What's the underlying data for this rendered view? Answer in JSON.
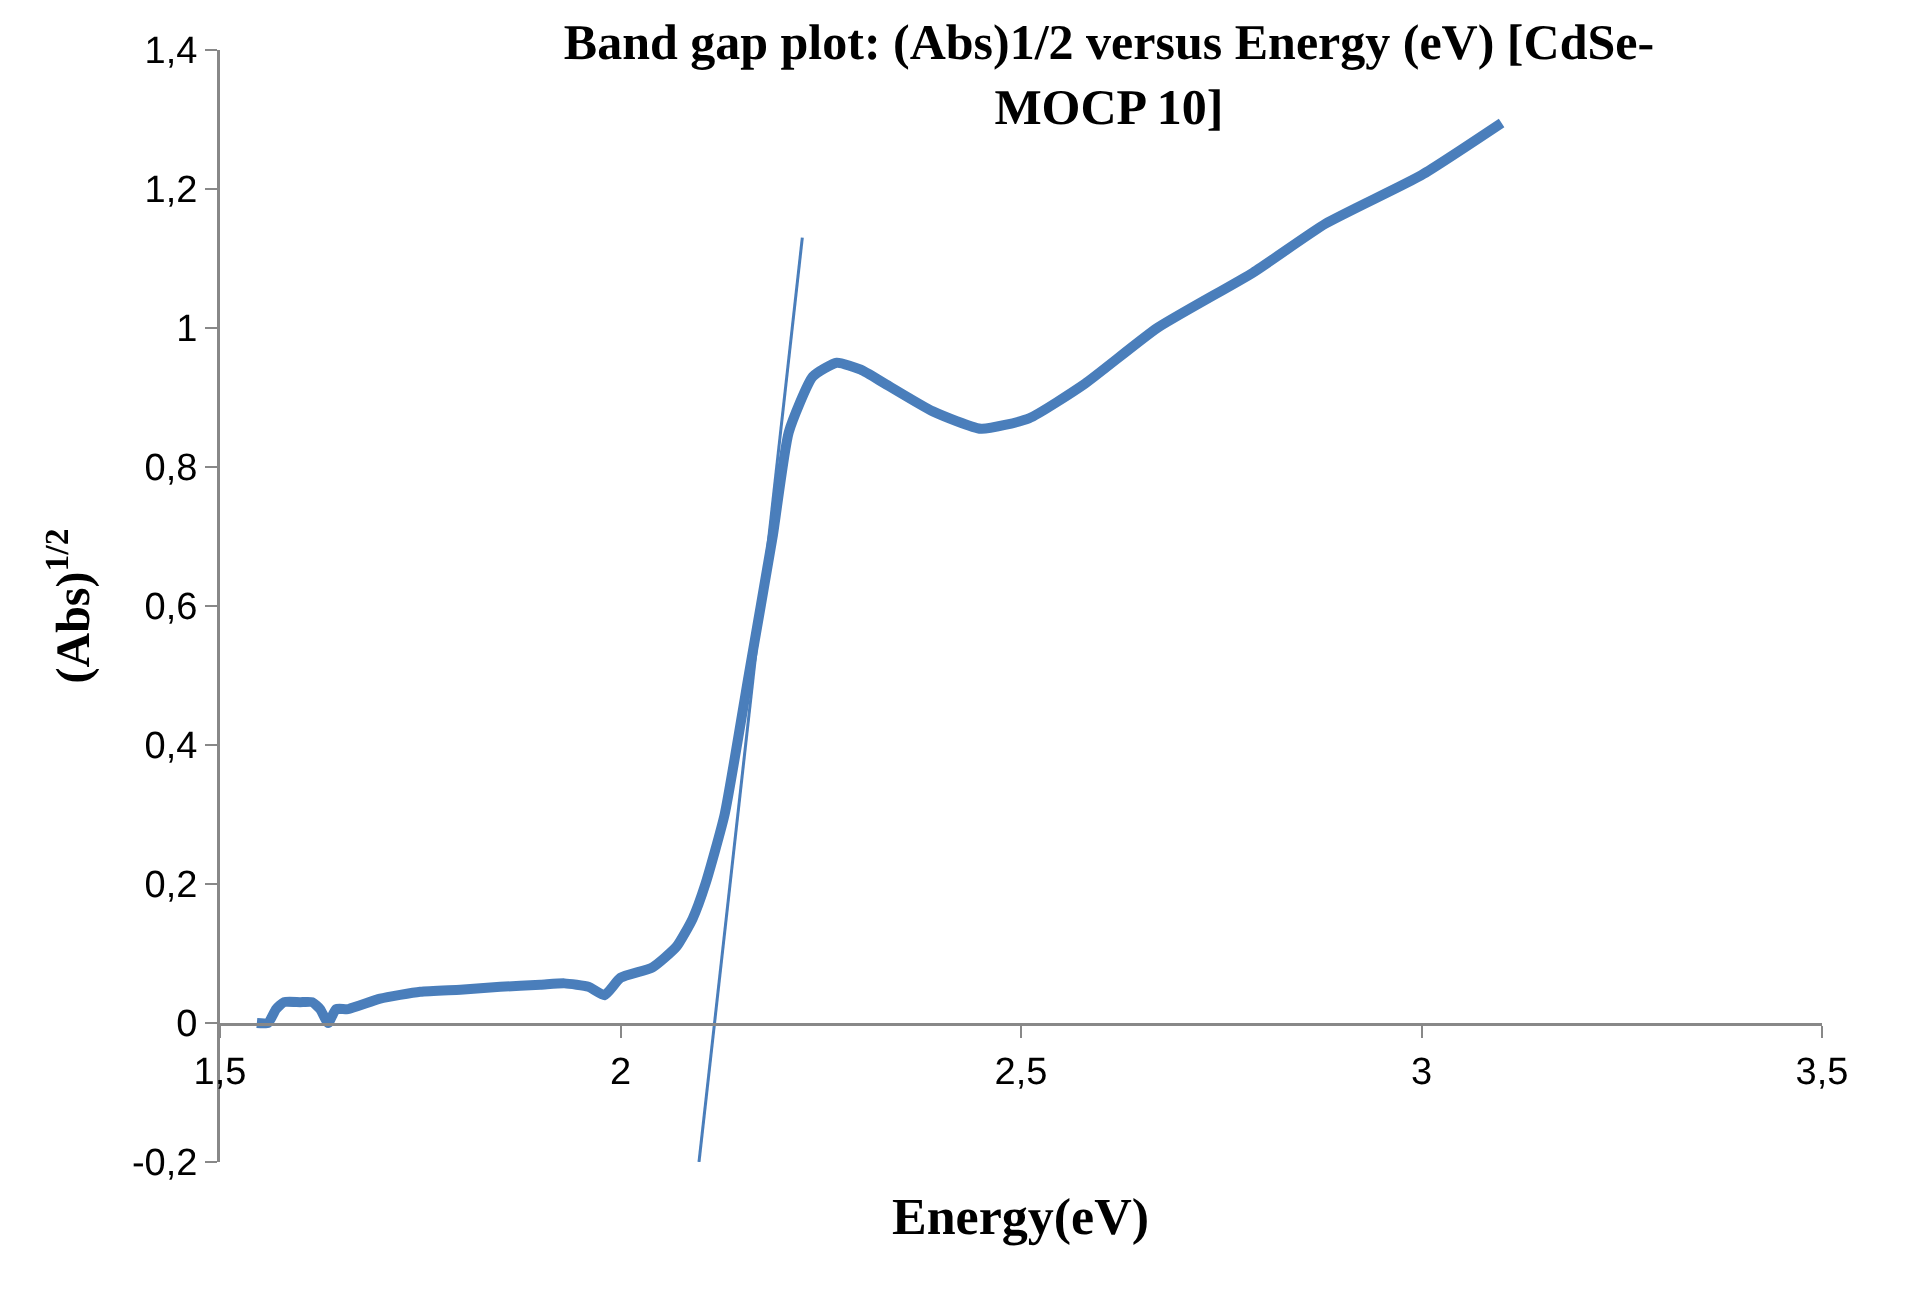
{
  "chart_data": {
    "type": "line",
    "title": "Band gap plot: (Abs)1/2 versus Energy (eV) [CdSe-\nMOCP 10]",
    "xlabel": "Energy(eV)",
    "ylabel": "(Abs)$^{1/2}$",
    "xlim": [
      1.5,
      3.5
    ],
    "xticks": [
      {
        "value": 1.5,
        "label": "1,5"
      },
      2,
      {
        "value": 2.5,
        "label": "2,5"
      },
      3,
      {
        "value": 3.5,
        "label": "3,5"
      }
    ],
    "ylim": [
      -0.2,
      1.4
    ],
    "yticks": [
      {
        "value": -0.2,
        "label": "-0,2"
      },
      0,
      {
        "value": 0.2,
        "label": "0,2"
      },
      {
        "value": 0.4,
        "label": "0,4"
      },
      {
        "value": 0.6,
        "label": "0,6"
      },
      {
        "value": 0.8,
        "label": "0,8"
      },
      1,
      {
        "value": 1.2,
        "label": "1,2"
      },
      {
        "value": 1.4,
        "label": "1,4"
      }
    ],
    "grid": false,
    "marker": "none",
    "line_style": "solid",
    "series": [
      {
        "color": "#4a7ebb",
        "x": [
          1.546,
          1.56,
          1.57,
          1.58,
          1.6,
          1.615,
          1.625,
          1.635,
          1.645,
          1.66,
          1.7,
          1.75,
          1.8,
          1.85,
          1.9,
          1.93,
          1.96,
          1.98,
          2.0,
          2.04,
          2.07,
          2.09,
          2.106,
          2.13,
          2.16,
          2.19,
          2.21,
          2.24,
          2.27,
          2.3,
          2.33,
          2.39,
          2.45,
          2.51,
          2.58,
          2.67,
          2.79,
          2.88,
          3.0,
          3.1
        ],
        "values": [
          0,
          0,
          0.02,
          0.03,
          0.03,
          0.03,
          0.02,
          0,
          0.02,
          0.02,
          0.035,
          0.045,
          0.048,
          0.052,
          0.055,
          0.057,
          0.052,
          0.04,
          0.065,
          0.08,
          0.11,
          0.15,
          0.2,
          0.3,
          0.5,
          0.7,
          0.85,
          0.93,
          0.95,
          0.94,
          0.92,
          0.88,
          0.855,
          0.87,
          0.92,
          1.0,
          1.08,
          1.15,
          1.22,
          1.295
        ]
      },
      {
        "color": "#4a7ebb",
        "x": [
          2.098,
          2.227
        ],
        "values": [
          -0.2,
          1.13
        ]
      }
    ]
  }
}
